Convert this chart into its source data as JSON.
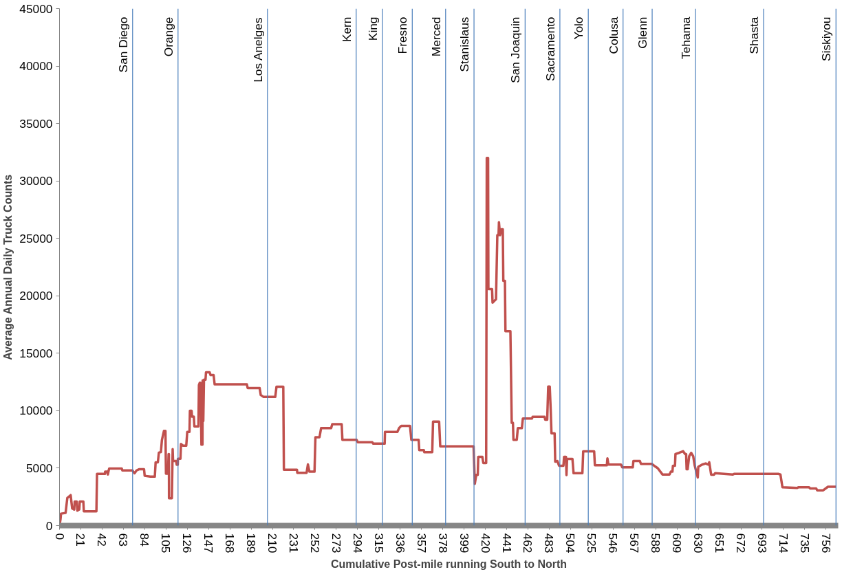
{
  "chart_data": {
    "type": "line",
    "xlabel": "Cumulative Post-mile running South to North",
    "ylabel": "Average Annual Daily Truck Counts",
    "xlim": [
      0,
      768
    ],
    "ylim": [
      0,
      45000
    ],
    "xticks": [
      0,
      21,
      42,
      63,
      84,
      105,
      126,
      147,
      168,
      189,
      210,
      231,
      252,
      273,
      294,
      315,
      336,
      357,
      378,
      399,
      420,
      441,
      462,
      483,
      504,
      525,
      546,
      567,
      588,
      609,
      630,
      651,
      672,
      693,
      714,
      735,
      756
    ],
    "yticks": [
      0,
      5000,
      10000,
      15000,
      20000,
      25000,
      30000,
      35000,
      40000,
      45000
    ],
    "line_style": "solid",
    "series": [
      {
        "color": "#c0504d",
        "x": [
          0,
          1,
          1.5,
          6,
          7.7,
          11,
          12.5,
          14.5,
          15,
          17,
          17.6,
          19.5,
          20,
          23.5,
          24,
          36.4,
          37,
          44.8,
          45,
          47,
          47.7,
          48.5,
          49,
          61.4,
          62,
          71.9,
          74,
          76,
          78.4,
          83.4,
          84,
          89.6,
          94,
          94.8,
          97,
          98,
          100,
          101,
          103,
          104.5,
          105,
          107,
          107.6,
          107.9,
          108,
          110.8,
          111.6,
          112,
          115,
          115.6,
          116.6,
          116.8,
          119.3,
          119.8,
          122,
          125,
          126,
          128.2,
          128.6,
          130.3,
          130.7,
          132.5,
          133,
          137,
          137.5,
          138.3,
          139,
          140,
          141,
          141.2,
          141.8,
          142.5,
          144,
          144.5,
          148,
          149,
          152,
          153,
          184.8,
          185.6,
          197.4,
          198.5,
          201,
          212.8,
          214,
          220.7,
          221.3,
          234.2,
          234.5,
          243.7,
          245,
          246.5,
          251.5,
          252.4,
          256.4,
          258,
          267.9,
          269,
          278.3,
          279,
          293,
          294.2,
          308.5,
          309.5,
          320.7,
          321,
          333.2,
          335,
          337,
          345.7,
          347,
          354.2,
          354.8,
          359.3,
          359.8,
          367.6,
          368.4,
          374.4,
          375.5,
          408.4,
          409.6,
          411,
          412.5,
          413,
          417,
          418,
          420.8,
          421.4,
          422.7,
          423,
          426.6,
          427.1,
          430.5,
          431.8,
          433,
          433.4,
          434.5,
          436,
          437.2,
          437.7,
          439.3,
          439.8,
          444.7,
          446,
          447.2,
          447.7,
          451,
          452,
          456,
          457,
          466,
          466.6,
          478.4,
          479,
          481,
          482,
          483.5,
          484.4,
          485.2,
          488.3,
          488.9,
          491,
          492.7,
          497,
          497.6,
          499.5,
          500,
          500.6,
          505.9,
          507,
          515.7,
          516.5,
          527.3,
          528,
          539.8,
          540.4,
          541.4,
          553.7,
          555,
          565.4,
          566,
          572.4,
          573.5,
          584,
          586.5,
          590,
          594.7,
          601.7,
          602.9,
          604.5,
          605,
          607,
          607.5,
          611,
          615,
          617,
          618,
          618.5,
          619.5,
          621,
          623,
          625,
          626.5,
          629.5,
          630,
          633.8,
          637.3,
          639.7,
          640.8,
          642.7,
          645.5,
          646.6,
          664.1,
          665.3,
          708.9,
          711,
          713,
          727.5,
          728.7,
          739.2,
          740.4,
          746.2,
          747.3,
          753.2,
          757.9,
          766
        ],
        "values": [
          0,
          550,
          1040,
          1100,
          2400,
          2650,
          1500,
          1400,
          2100,
          2100,
          1300,
          1400,
          2100,
          2100,
          1240,
          1240,
          4500,
          4500,
          4700,
          4700,
          4450,
          4800,
          4960,
          4960,
          4800,
          4800,
          4550,
          4800,
          4900,
          4900,
          4330,
          4260,
          4260,
          5510,
          5510,
          6350,
          6400,
          7440,
          8240,
          8240,
          4520,
          4520,
          6230,
          6230,
          2380,
          2380,
          6650,
          5620,
          5620,
          5300,
          5300,
          5820,
          5820,
          7100,
          6950,
          6950,
          8160,
          8160,
          9990,
          9990,
          9480,
          9480,
          8630,
          8630,
          12230,
          12430,
          12430,
          7040,
          7040,
          12640,
          9100,
          12700,
          12700,
          13350,
          13350,
          13100,
          13100,
          12290,
          12290,
          11970,
          11970,
          11360,
          11210,
          11210,
          12090,
          12090,
          4860,
          4860,
          4600,
          4600,
          5320,
          4690,
          4690,
          7690,
          7690,
          8480,
          8480,
          8830,
          8830,
          7470,
          7470,
          7250,
          7250,
          7130,
          7130,
          8150,
          8150,
          8500,
          8670,
          8670,
          7470,
          7470,
          6570,
          6570,
          6390,
          6390,
          9050,
          9050,
          6900,
          6900,
          3630,
          4410,
          4410,
          5990,
          5990,
          5440,
          5440,
          32000,
          32000,
          20590,
          20590,
          19410,
          19700,
          25280,
          25280,
          26410,
          25280,
          25790,
          25790,
          21310,
          21310,
          16920,
          16920,
          8940,
          8940,
          7470,
          7470,
          8480,
          8480,
          9320,
          9320,
          9470,
          9470,
          9220,
          9220,
          12110,
          12110,
          10190,
          8030,
          8030,
          5560,
          5620,
          5210,
          5210,
          5980,
          5980,
          4400,
          5800,
          5800,
          4560,
          4560,
          6470,
          6470,
          5250,
          5250,
          5850,
          5310,
          5310,
          5070,
          5070,
          5620,
          5620,
          5370,
          5370,
          5210,
          5000,
          4450,
          4450,
          4690,
          4690,
          5210,
          5210,
          6230,
          6330,
          6470,
          6230,
          6230,
          4900,
          4900,
          6030,
          6330,
          6030,
          5210,
          4190,
          5110,
          5310,
          5410,
          5310,
          5510,
          4430,
          4430,
          4560,
          4450,
          4500,
          4500,
          4450,
          3340,
          3270,
          3340,
          3340,
          3230,
          3230,
          3070,
          3070,
          3380,
          3380
        ]
      }
    ],
    "ref_lines": [
      {
        "axis": "x",
        "value": 72.1,
        "label": "San Diego",
        "color": "#4a7ebb"
      },
      {
        "axis": "x",
        "value": 116.9,
        "label": "Orange",
        "color": "#4a7ebb"
      },
      {
        "axis": "x",
        "value": 205.1,
        "label": "Los Anelges",
        "color": "#4a7ebb"
      },
      {
        "axis": "x",
        "value": 292.6,
        "label": "Kern",
        "color": "#4a7ebb"
      },
      {
        "axis": "x",
        "value": 318.5,
        "label": "King",
        "color": "#4a7ebb"
      },
      {
        "axis": "x",
        "value": 347.9,
        "label": "Fresno",
        "color": "#4a7ebb"
      },
      {
        "axis": "x",
        "value": 380.8,
        "label": "Merced",
        "color": "#4a7ebb"
      },
      {
        "axis": "x",
        "value": 408.8,
        "label": "Stanislaus",
        "color": "#4a7ebb"
      },
      {
        "axis": "x",
        "value": 459.2,
        "label": "San Joaquin",
        "color": "#4a7ebb"
      },
      {
        "axis": "x",
        "value": 493.5,
        "label": "Sacramento",
        "color": "#4a7ebb"
      },
      {
        "axis": "x",
        "value": 521.5,
        "label": "Yolo",
        "color": "#4a7ebb"
      },
      {
        "axis": "x",
        "value": 555.8,
        "label": "Colusa",
        "color": "#4a7ebb"
      },
      {
        "axis": "x",
        "value": 584.5,
        "label": "Glenn",
        "color": "#4a7ebb"
      },
      {
        "axis": "x",
        "value": 627.2,
        "label": "Tehama",
        "color": "#4a7ebb"
      },
      {
        "axis": "x",
        "value": 694.4,
        "label": "Shasta",
        "color": "#4a7ebb"
      },
      {
        "axis": "x",
        "value": 765.8,
        "label": "Siskiyou",
        "color": "#4a7ebb"
      }
    ]
  }
}
